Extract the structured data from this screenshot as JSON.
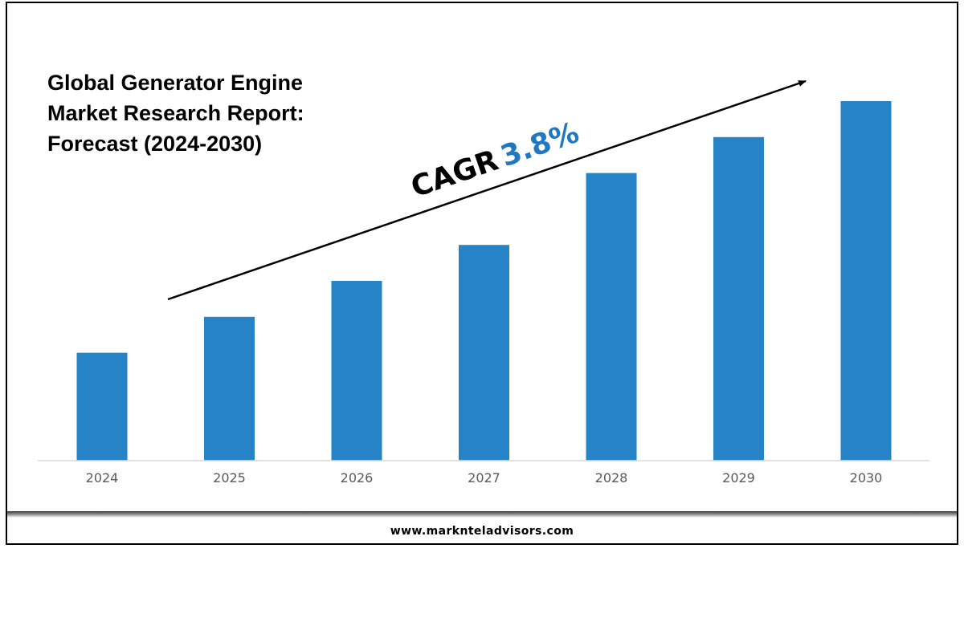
{
  "title_lines": [
    "Global Generator Engine",
    "Market Research Report:",
    "Forecast (2024-2030)"
  ],
  "cagr": {
    "label": "CAGR",
    "value": "3.8%"
  },
  "footer": {
    "website": "www.marknteladvisors.com"
  },
  "colors": {
    "bar": "#2683C6",
    "cagr_value": "#1F78C1",
    "axis": "#D9D9D9",
    "tick_label": "#595959"
  },
  "chart_data": {
    "type": "bar",
    "title": "Global Generator Engine Market Research Report: Forecast (2024-2030)",
    "categories": [
      "2024",
      "2025",
      "2026",
      "2027",
      "2028",
      "2029",
      "2030"
    ],
    "values": [
      30,
      40,
      50,
      60,
      80,
      90,
      100
    ],
    "value_axis_visible": false,
    "note": "relative bar heights; no value axis or data labels shown",
    "grid": false,
    "legend": "none"
  }
}
